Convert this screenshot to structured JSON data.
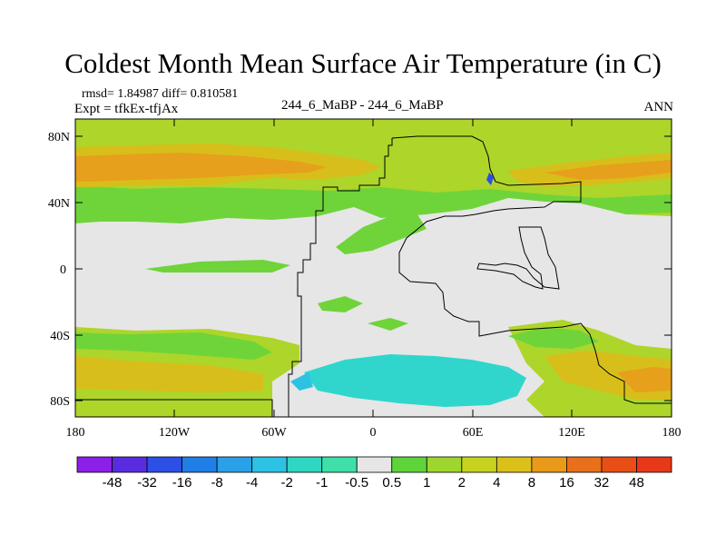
{
  "title": "Coldest Month Mean Surface Air Temperature (in C)",
  "stats": "rmsd= 1.84987 diff= 0.810581",
  "expt": "Expt = tfkEx-tfjAx",
  "case": "244_6_MaBP - 244_6_MaBP",
  "season": "ANN",
  "lat_labels": [
    "80N",
    "40N",
    "0",
    "40S",
    "80S"
  ],
  "lon_labels": [
    "180",
    "120W",
    "60W",
    "0",
    "60E",
    "120E",
    "180"
  ],
  "colorbar": {
    "labels": [
      "-48",
      "-32",
      "-16",
      "-8",
      "-4",
      "-2",
      "-1",
      "-0.5",
      "0.5",
      "1",
      "2",
      "4",
      "8",
      "16",
      "32",
      "48"
    ],
    "colors": [
      "#8c1fe8",
      "#5a2ce0",
      "#2c4fe6",
      "#1f7fe6",
      "#2aa0e8",
      "#2cc2e4",
      "#2fd6c2",
      "#3ee0a8",
      "#e6e6e6",
      "#5ed43a",
      "#9ed62e",
      "#c6d21e",
      "#dcc01a",
      "#e89a18",
      "#e8701a",
      "#e84e16",
      "#e8381a"
    ]
  },
  "colors": {
    "land_outline": "#000000",
    "neutral": "#e6e6e6",
    "warm_green": "#6fd43a",
    "yellow_green": "#aed52a",
    "gold": "#d8be1a",
    "orange": "#e6a01c",
    "cyan": "#30d6cc"
  }
}
